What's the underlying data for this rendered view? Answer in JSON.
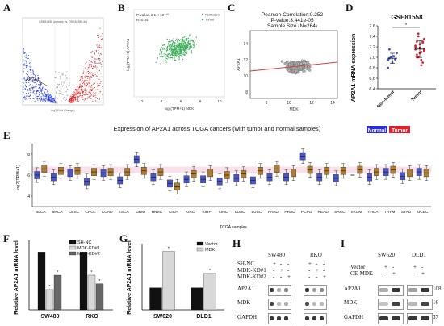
{
  "panel_labels": {
    "A": "A",
    "B": "B",
    "C": "C",
    "D": "D",
    "E": "E",
    "F": "F",
    "G": "G",
    "H": "H",
    "I": "I"
  },
  "panelA": {
    "title": "GSE81558 (primary vs. GSE81558 dv)",
    "gene_label": "AP2A1",
    "xlabel": "log2(Fold Change)",
    "colors": {
      "down": "#2b3fd6",
      "up": "#e02020",
      "ns": "#999999"
    },
    "legend": [
      "Down",
      "NoDiff",
      "Up"
    ]
  },
  "panelB": {
    "annotation_p": "P-value=2.1 × 10⁻¹⁰",
    "annotation_r": "R=0.34",
    "legend": [
      "Perifusion",
      "Tumor"
    ],
    "ylabel": "log₂(TPM+1) AP2A1",
    "xlabel": "log₂(TPM+1) MDK",
    "xticks": [
      "2",
      "4",
      "6",
      "8",
      "10"
    ],
    "color": "#3fae5a"
  },
  "panelC": {
    "title_lines": [
      "Pearson-Correlation:0.252",
      "P-value:3.441e-05",
      "Sample Size (N=264)"
    ],
    "ylabel": "AP2A1",
    "xlabel": "MDK",
    "xticks": [
      "8",
      "10",
      "12",
      "14"
    ],
    "yticks": [
      "8",
      "10",
      "12",
      "14"
    ],
    "line_color": "#d23a3a"
  },
  "chart_data": [
    {
      "type": "scatter",
      "title": "GSE81558",
      "ylabel": "AP2A1 mRNA expression",
      "categories": [
        "Non-tumor",
        "Tumor"
      ],
      "ylim": [
        6.4,
        7.6
      ],
      "yticks": [
        "6.4",
        "6.6",
        "6.8",
        "7.0",
        "7.2",
        "7.4",
        "7.6"
      ],
      "series": [
        {
          "values": [
            6.95,
            6.98,
            7.0,
            6.9,
            7.02,
            6.96,
            7.08,
            6.8,
            7.15
          ]
        },
        {
          "values": [
            7.15,
            7.3,
            7.0,
            7.25,
            7.1,
            6.9,
            7.35,
            7.2,
            7.05,
            7.4,
            7.18,
            6.95,
            7.28,
            7.12,
            7.22,
            7.0,
            7.45,
            7.08,
            6.85,
            7.3,
            7.15
          ]
        }
      ],
      "significance": "*"
    },
    {
      "type": "boxplot",
      "title": "Expression of AP2A1 across TCGA cancers (with tumor and normal samples)",
      "xlabel": "TCGA samples",
      "ylabel": "log2(TPM+1)",
      "ylim": [
        3,
        9
      ],
      "categories": [
        "BLCA",
        "BRCA",
        "CESC",
        "CHOL",
        "COAD",
        "ESCA",
        "GBM",
        "HNSC",
        "KICH",
        "KIRC",
        "KIRP",
        "LIHC",
        "LUAD",
        "LUSC",
        "PAAD",
        "PRAD",
        "PCPG",
        "READ",
        "SARC",
        "SKCM",
        "THCA",
        "THYM",
        "STAD",
        "UCEC"
      ],
      "legend": [
        "Normal",
        "Tumor"
      ],
      "colors": {
        "normal": "#4a55c9",
        "tumor": "#b07d2f",
        "normal_tag": "#2d2dd8",
        "tumor_tag": "#e0202f",
        "band": "#f6c6d8"
      },
      "normal_medians": [
        6.0,
        5.8,
        6.2,
        5.4,
        6.2,
        5.5,
        7.5,
        5.8,
        5.2,
        5.6,
        5.6,
        5.4,
        5.7,
        5.5,
        5.8,
        5.8,
        7.8,
        5.8,
        5.7,
        null,
        5.8,
        6.3,
        5.9,
        6.3
      ],
      "tumor_medians": [
        6.6,
        6.4,
        6.4,
        6.3,
        6.3,
        6.3,
        6.4,
        6.3,
        4.9,
        6.1,
        6.2,
        6.0,
        6.1,
        6.4,
        6.6,
        6.2,
        6.5,
        6.4,
        6.4,
        6.5,
        6.3,
        6.5,
        6.2,
        6.2
      ]
    },
    {
      "type": "bar",
      "ylabel": "Relative AP2A1 mRNA level",
      "categories": [
        "SW480",
        "RKO"
      ],
      "ylim": [
        0,
        1.2
      ],
      "series": [
        {
          "name": "SH-NC",
          "values": [
            1.0,
            1.0
          ]
        },
        {
          "name": "MDK-KD#1",
          "values": [
            0.35,
            0.6
          ]
        },
        {
          "name": "MDK-KD#2",
          "values": [
            0.6,
            0.45
          ]
        }
      ],
      "colors": [
        "#111111",
        "#d8d8d8",
        "#666666"
      ]
    },
    {
      "type": "bar",
      "ylabel": "Relative AP2A1 mRNA level",
      "categories": [
        "SW620",
        "DLD1"
      ],
      "ylim": [
        0,
        3
      ],
      "series": [
        {
          "name": "Vector",
          "values": [
            1.0,
            1.0
          ]
        },
        {
          "name": "MDK",
          "values": [
            2.65,
            1.65
          ]
        }
      ],
      "colors": [
        "#111111",
        "#d8d8d8"
      ]
    }
  ],
  "panelH": {
    "cells": [
      "SW480",
      "RKO"
    ],
    "conditions": [
      "SH-NC",
      "MDK-KD#1",
      "MDK-KD#2"
    ],
    "pattern": [
      [
        "+",
        "-",
        "-",
        "+",
        "-",
        "-"
      ],
      [
        "-",
        "+",
        "-",
        "-",
        "+",
        "-"
      ],
      [
        "-",
        "-",
        "+",
        "-",
        "-",
        "+"
      ]
    ],
    "blots": [
      "AP2A1",
      "MDK",
      "GAPDH"
    ]
  },
  "panelI": {
    "cells": [
      "SW620",
      "DLD1"
    ],
    "conditions": [
      "Vector",
      "OE-MDK"
    ],
    "pattern": [
      [
        "+",
        "-",
        "+",
        "-"
      ],
      [
        "-",
        "+",
        "-",
        "+"
      ]
    ],
    "blots": [
      "AP2A1",
      "MDK",
      "GAPDH"
    ],
    "sizes": [
      "108",
      "16",
      "37"
    ]
  }
}
